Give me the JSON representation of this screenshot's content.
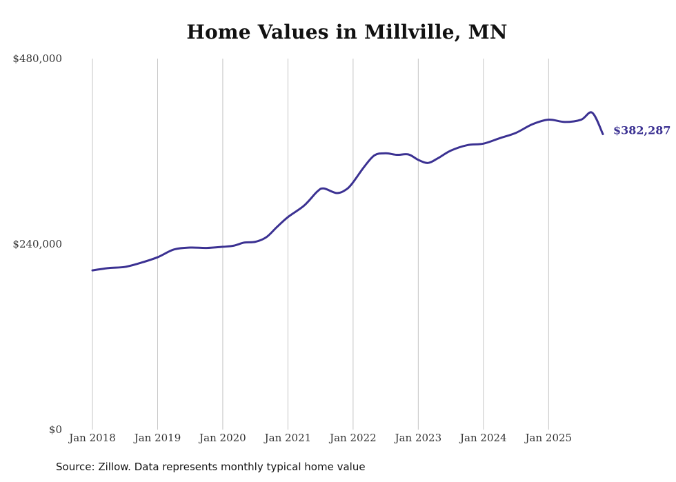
{
  "chart_data": {
    "type": "line",
    "title": "Home Values in Millville, MN",
    "xlabel": "",
    "ylabel": "",
    "ylim": [
      0,
      480000
    ],
    "yticks": [
      0,
      240000,
      480000
    ],
    "ytick_labels": [
      "$0",
      "$240,000",
      "$480,000"
    ],
    "xlim": [
      2018.0,
      2025.833
    ],
    "xticks": [
      2018,
      2019,
      2020,
      2021,
      2022,
      2023,
      2024,
      2025
    ],
    "xtick_labels": [
      "Jan 2018",
      "Jan 2019",
      "Jan 2020",
      "Jan 2021",
      "Jan 2022",
      "Jan 2023",
      "Jan 2024",
      "Jan 2025"
    ],
    "grid": "vertical",
    "line_color": "#3b3192",
    "end_label": "$382,287",
    "series": [
      {
        "name": "Typical home value",
        "points": [
          [
            2018.0,
            206000
          ],
          [
            2018.25,
            209000
          ],
          [
            2018.5,
            210500
          ],
          [
            2018.75,
            216000
          ],
          [
            2019.0,
            223000
          ],
          [
            2019.25,
            233000
          ],
          [
            2019.5,
            235500
          ],
          [
            2019.75,
            235000
          ],
          [
            2020.0,
            236500
          ],
          [
            2020.17,
            238000
          ],
          [
            2020.33,
            242000
          ],
          [
            2020.5,
            243000
          ],
          [
            2020.67,
            249000
          ],
          [
            2020.83,
            262000
          ],
          [
            2021.0,
            275000
          ],
          [
            2021.25,
            290000
          ],
          [
            2021.45,
            308000
          ],
          [
            2021.55,
            312000
          ],
          [
            2021.75,
            306000
          ],
          [
            2021.9,
            311000
          ],
          [
            2022.0,
            320000
          ],
          [
            2022.17,
            340000
          ],
          [
            2022.33,
            355000
          ],
          [
            2022.5,
            357500
          ],
          [
            2022.67,
            355500
          ],
          [
            2022.85,
            356000
          ],
          [
            2023.0,
            349000
          ],
          [
            2023.15,
            345000
          ],
          [
            2023.3,
            351000
          ],
          [
            2023.5,
            361000
          ],
          [
            2023.75,
            368000
          ],
          [
            2024.0,
            370000
          ],
          [
            2024.25,
            377000
          ],
          [
            2024.5,
            384000
          ],
          [
            2024.75,
            395000
          ],
          [
            2025.0,
            401000
          ],
          [
            2025.25,
            398000
          ],
          [
            2025.5,
            401000
          ],
          [
            2025.67,
            410000
          ],
          [
            2025.833,
            382287
          ]
        ]
      }
    ]
  },
  "source_text": "Source: Zillow. Data represents monthly typical home value"
}
